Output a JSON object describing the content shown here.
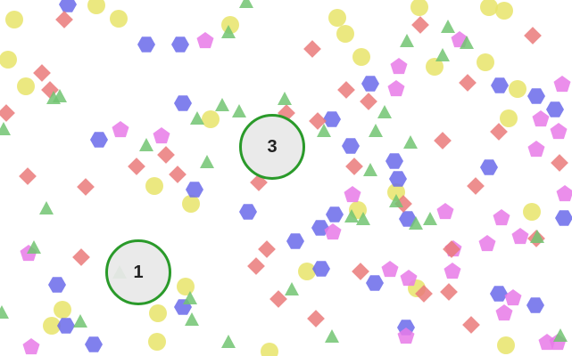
{
  "game": {
    "shape_colors": {
      "yellow-circle": "#e8e46a",
      "blue-hexagon": "#6a6aea",
      "pink-pentagon": "#e87ae8",
      "red-diamond": "#ea7a7a",
      "green-triangle": "#72c472"
    },
    "target_ring_color": "#2a9a2a",
    "targets": [
      {
        "id": "target-3",
        "label": "3"
      },
      {
        "id": "target-1",
        "label": "1"
      }
    ]
  }
}
